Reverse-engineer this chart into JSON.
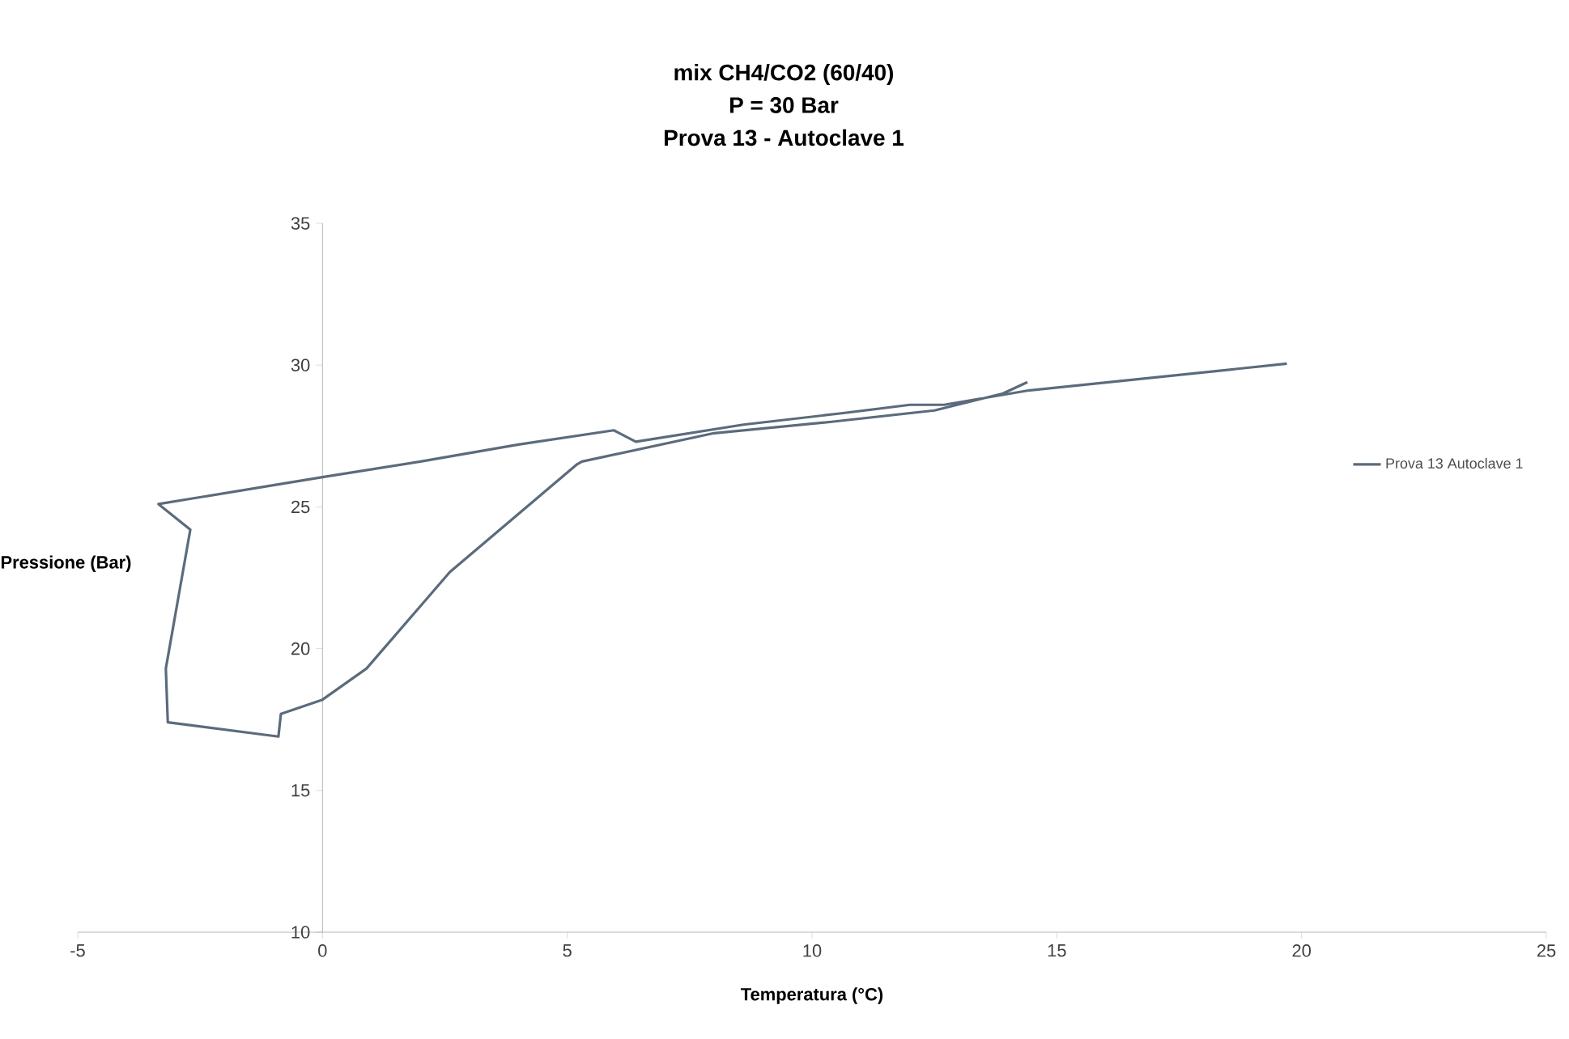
{
  "chart_data": {
    "type": "line",
    "title": "mix CH4/CO2 (60/40)",
    "subtitle": "P = 30 Bar",
    "annotations": [
      "Prova 13 - Autoclave 1"
    ],
    "xlabel": "Temperatura (°C)",
    "ylabel": "Pressione (Bar)",
    "xlim": [
      -5,
      25
    ],
    "xticks": [
      -5,
      0,
      5,
      10,
      15,
      20,
      25
    ],
    "ylim": [
      10,
      35
    ],
    "yticks": [
      10,
      15,
      20,
      25,
      30,
      35
    ],
    "grid": false,
    "legend": "right",
    "marker": "none",
    "line_style": "solid",
    "series": [
      {
        "name": "Prova 13 Autoclave 1",
        "color": "#5b6b7c",
        "x": [
          14.4,
          13.9,
          12.5,
          10.4,
          8.0,
          5.3,
          5.2,
          2.6,
          0.9,
          0.0,
          -0.85,
          -0.9,
          -3.16,
          -3.2,
          -2.7,
          -3.35,
          0.0,
          2.0,
          4.0,
          5.95,
          6.4,
          8.6,
          10.6,
          12.0,
          12.7,
          14.4,
          19.7
        ],
        "values": [
          29.4,
          29.0,
          28.4,
          28.0,
          27.6,
          26.6,
          26.5,
          22.7,
          19.3,
          18.2,
          17.7,
          16.9,
          17.4,
          19.3,
          24.2,
          25.1,
          26.05,
          26.6,
          27.2,
          27.7,
          27.3,
          27.9,
          28.3,
          28.6,
          28.6,
          29.1,
          30.05
        ]
      }
    ]
  }
}
